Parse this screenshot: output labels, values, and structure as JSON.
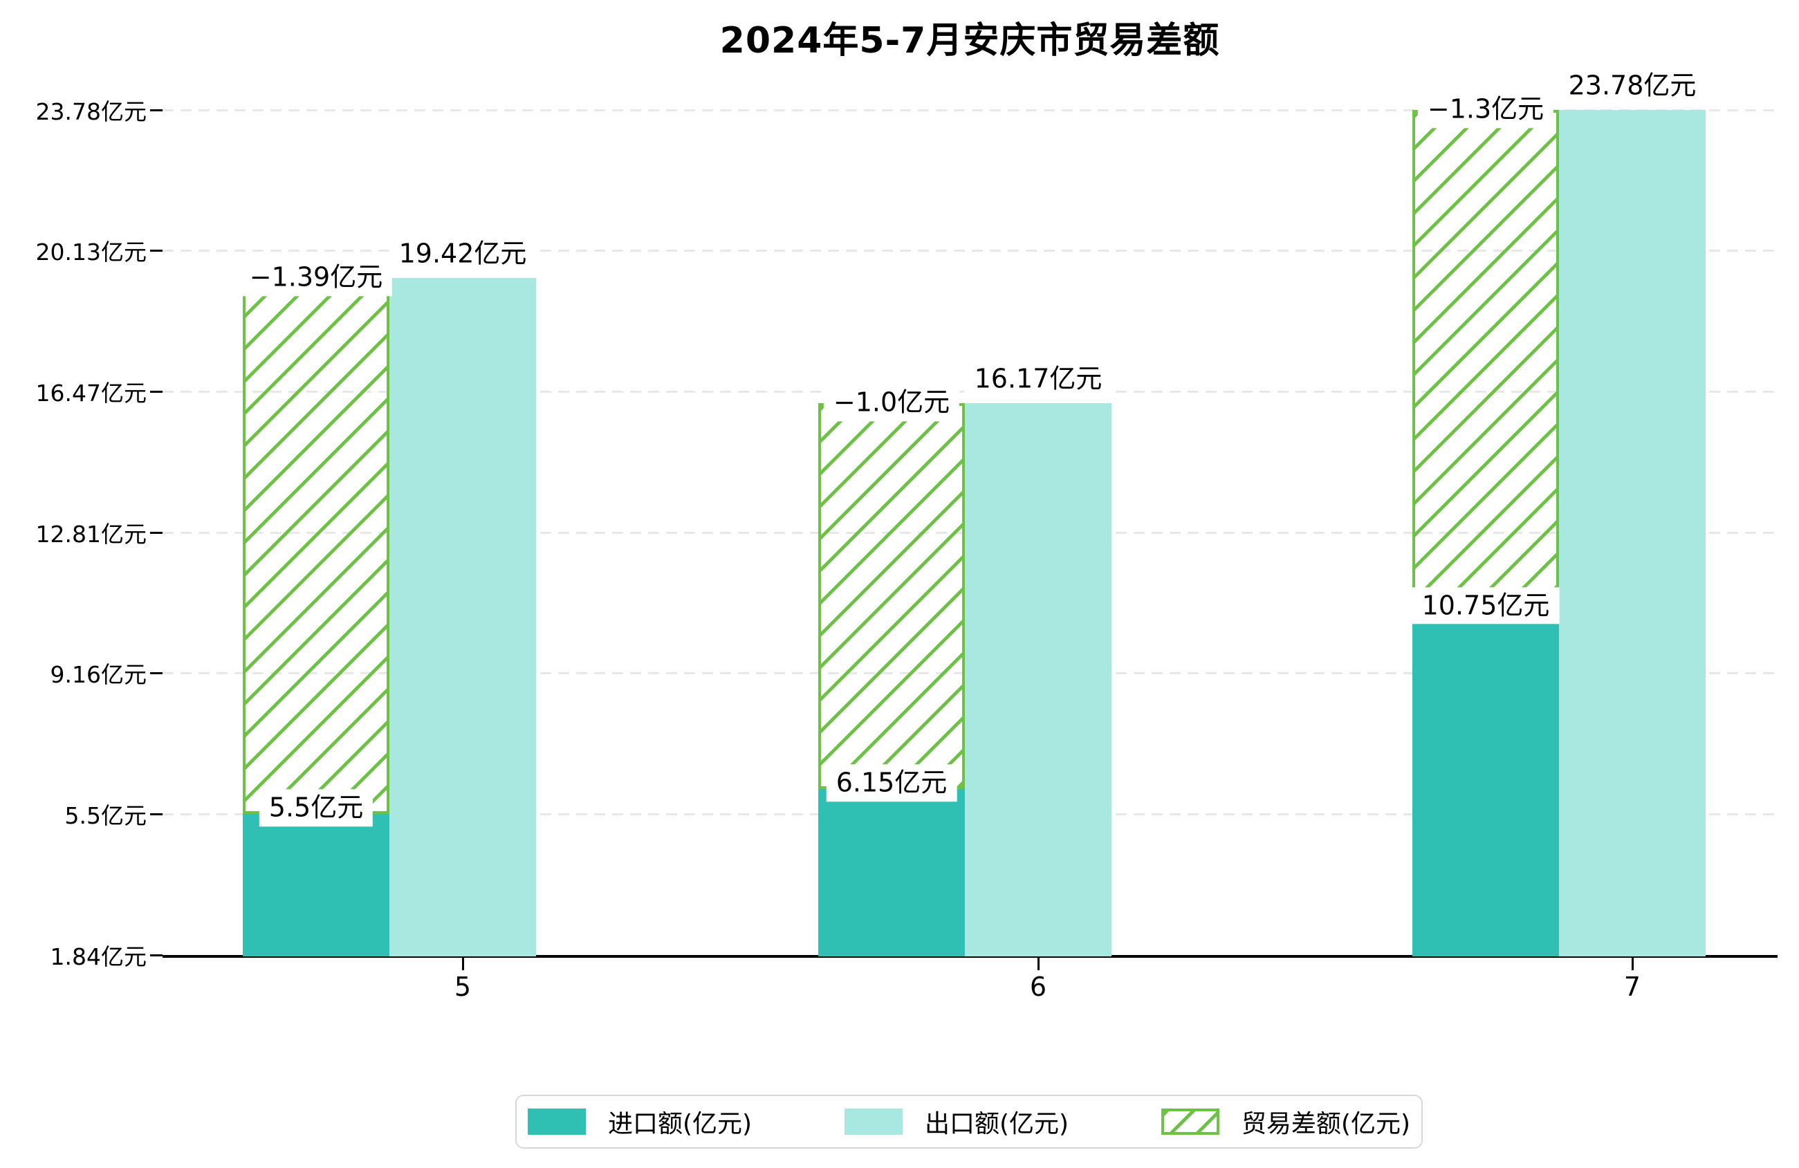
{
  "title": "2024年5-7月安庆市贸易差额",
  "colors": {
    "import": "#2FBFB3",
    "export": "#A9E8E1",
    "balance": "#6EC046",
    "grid": "#e8e8e8",
    "axis": "#000000",
    "legend_border": "#d8d8d8"
  },
  "chart_data": {
    "type": "bar",
    "title": "2024年5-7月安庆市贸易差额",
    "categories": [
      "5",
      "6",
      "7"
    ],
    "series": [
      {
        "name": "进口额(亿元)",
        "role": "import",
        "color": "#2FBFB3",
        "values": [
          5.5,
          6.15,
          10.75
        ],
        "labels": [
          "5.5亿元",
          "6.15亿元",
          "10.75亿元"
        ]
      },
      {
        "name": "出口额(亿元)",
        "role": "export",
        "color": "#A9E8E1",
        "values": [
          19.42,
          16.17,
          23.78
        ],
        "labels": [
          "19.42亿元",
          "16.17亿元",
          "23.78亿元"
        ]
      },
      {
        "name": "贸易差额(亿元)",
        "role": "balance",
        "color": "#6EC046",
        "style": "hatched-span-from-import-to-export",
        "values": [
          -1.39,
          -1.0,
          -1.3
        ],
        "labels": [
          "−1.39亿元",
          "−1.0亿元",
          "−1.3亿元"
        ]
      }
    ],
    "y_ticks": [
      1.84,
      5.5,
      9.16,
      12.81,
      16.47,
      20.13,
      23.78
    ],
    "y_tick_labels": [
      "1.84亿元",
      "5.5亿元",
      "9.16亿元",
      "12.81亿元",
      "16.47亿元",
      "20.13亿元",
      "23.78亿元"
    ],
    "ylim": [
      1.84,
      23.78
    ],
    "xlabel": "",
    "ylabel": "",
    "grid": "horizontal-dashed",
    "legend_position": "bottom-center"
  },
  "legend": {
    "items": [
      {
        "label": "进口额(亿元)"
      },
      {
        "label": "出口额(亿元)"
      },
      {
        "label": "贸易差额(亿元)"
      }
    ]
  }
}
